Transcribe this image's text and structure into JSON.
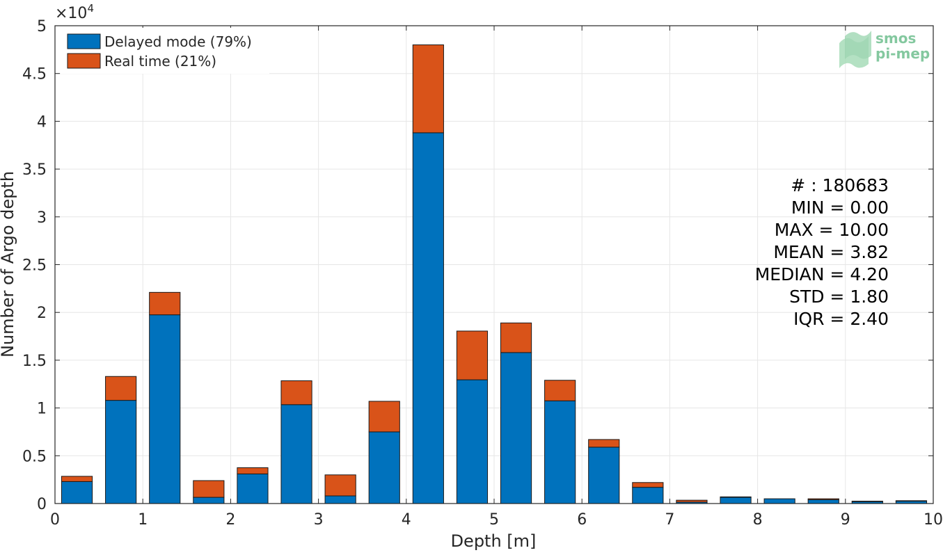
{
  "chart_data": {
    "type": "bar",
    "stacked": true,
    "xlabel": "Depth [m]",
    "ylabel": "Number of Argo depth",
    "xlim": [
      0,
      10
    ],
    "ylim": [
      0,
      50000
    ],
    "x_ticks": [
      "0",
      "1",
      "2",
      "3",
      "4",
      "5",
      "6",
      "7",
      "8",
      "9",
      "10"
    ],
    "y_ticks": [
      "0",
      "0.5",
      "1",
      "1.5",
      "2",
      "2.5",
      "3",
      "3.5",
      "4",
      "4.5",
      "5"
    ],
    "y_exponent_base": "×10",
    "y_exponent_power": "4",
    "grid": true,
    "legend_position": "top-left",
    "x": [
      0.25,
      0.75,
      1.25,
      1.75,
      2.25,
      2.75,
      3.25,
      3.75,
      4.25,
      4.75,
      5.25,
      5.75,
      6.25,
      6.75,
      7.25,
      7.75,
      8.25,
      8.75,
      9.25,
      9.75
    ],
    "bar_width": 0.35,
    "series": [
      {
        "name": "Delayed mode (79%)",
        "color": "#0072BD",
        "values": [
          2300,
          10800,
          19750,
          650,
          3100,
          10350,
          800,
          7500,
          38800,
          12950,
          15800,
          10750,
          5900,
          1700,
          150,
          650,
          500,
          400,
          200,
          250
        ]
      },
      {
        "name": "Real time (21%)",
        "color": "#D95319",
        "values": [
          550,
          2500,
          2350,
          1750,
          650,
          2500,
          2200,
          3200,
          9200,
          5100,
          3100,
          2150,
          800,
          500,
          200,
          50,
          0,
          100,
          50,
          50
        ]
      }
    ],
    "stats_lines": [
      "# : 180683",
      "MIN = 0.00",
      "MAX =  10.00",
      "MEAN = 3.82",
      "MEDIAN = 4.20",
      "STD = 1.80",
      "IQR = 2.40"
    ]
  },
  "logo": {
    "line1": "smos",
    "line2": "pi-mep",
    "color": "#6fbf8f"
  }
}
